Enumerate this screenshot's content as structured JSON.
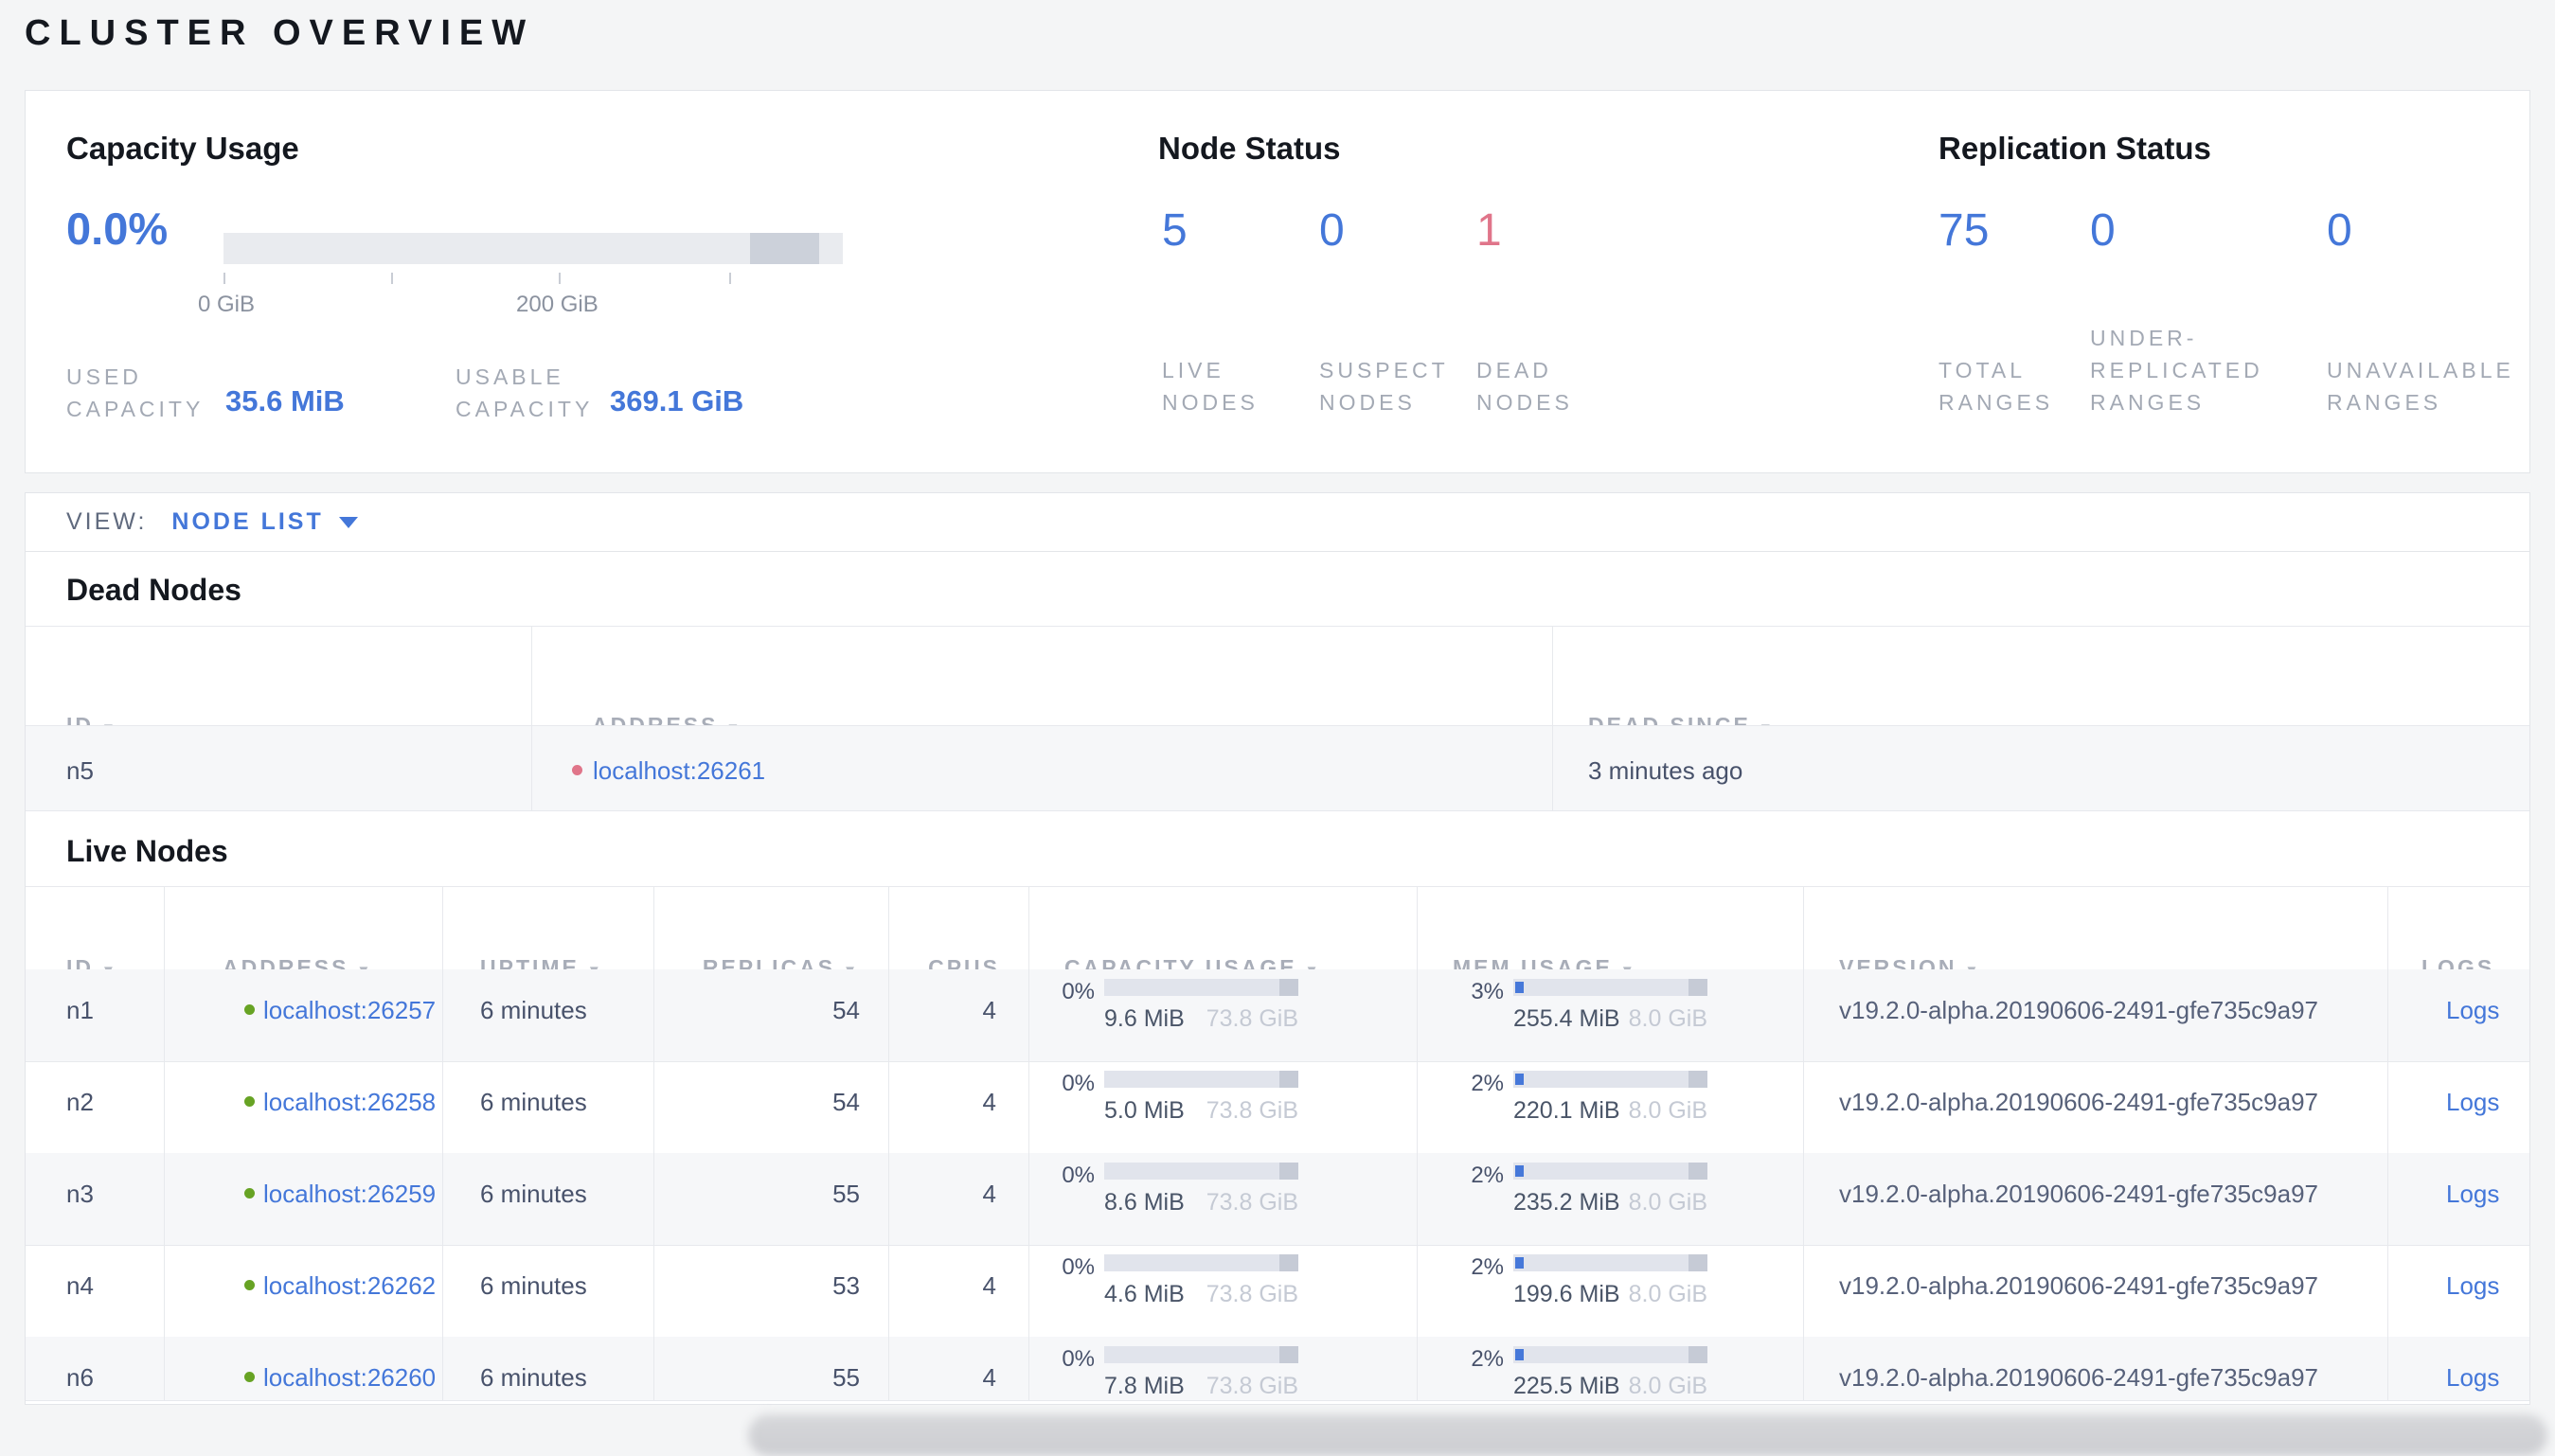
{
  "page": {
    "title": "CLUSTER OVERVIEW"
  },
  "colors": {
    "accent_blue": "#4477d9",
    "danger_red": "#e0758a",
    "live_green": "#67a324",
    "panel_border": "#e3e5e9",
    "muted_label": "#a3a9b4"
  },
  "summary": {
    "capacity": {
      "title": "Capacity Usage",
      "percent": "0.0%",
      "axis_tick_0": "0 GiB",
      "axis_tick_200": "200 GiB",
      "used_label": "USED CAPACITY",
      "used_value": "35.6 MiB",
      "usable_label": "USABLE CAPACITY",
      "usable_value": "369.1 GiB"
    },
    "node_status": {
      "title": "Node Status",
      "items": [
        {
          "value": "5",
          "label": "LIVE NODES"
        },
        {
          "value": "0",
          "label": "SUSPECT NODES"
        },
        {
          "value": "1",
          "label": "DEAD NODES"
        }
      ]
    },
    "replication": {
      "title": "Replication Status",
      "items": [
        {
          "value": "75",
          "label": "TOTAL RANGES"
        },
        {
          "value": "0",
          "label": "UNDER-REPLICATED RANGES"
        },
        {
          "value": "0",
          "label": "UNAVAILABLE RANGES"
        }
      ]
    }
  },
  "view_bar": {
    "label": "VIEW:",
    "selected": "NODE LIST"
  },
  "dead_nodes": {
    "title": "Dead Nodes",
    "columns": [
      {
        "label": "ID"
      },
      {
        "label": "ADDRESS"
      },
      {
        "label": "DEAD SINCE"
      }
    ],
    "rows": [
      {
        "id": "n5",
        "address": "localhost:26261",
        "dead_since": "3 minutes ago"
      }
    ]
  },
  "live_nodes": {
    "title": "Live Nodes",
    "columns": [
      {
        "label": "ID"
      },
      {
        "label": "ADDRESS"
      },
      {
        "label": "UPTIME"
      },
      {
        "label": "REPLICAS"
      },
      {
        "label": "CPUS"
      },
      {
        "label": "CAPACITY USAGE"
      },
      {
        "label": "MEM USAGE"
      },
      {
        "label": "VERSION"
      },
      {
        "label": "LOGS"
      }
    ],
    "rows": [
      {
        "id": "n1",
        "address": "localhost:26257",
        "uptime": "6 minutes",
        "replicas": "54",
        "cpus": "4",
        "capacity_pct": "0%",
        "capacity_used": "9.6 MiB",
        "capacity_total": "73.8 GiB",
        "mem_pct": "3%",
        "mem_used": "255.4 MiB",
        "mem_total": "8.0 GiB",
        "version": "v19.2.0-alpha.20190606-2491-gfe735c9a97",
        "logs": "Logs"
      },
      {
        "id": "n2",
        "address": "localhost:26258",
        "uptime": "6 minutes",
        "replicas": "54",
        "cpus": "4",
        "capacity_pct": "0%",
        "capacity_used": "5.0 MiB",
        "capacity_total": "73.8 GiB",
        "mem_pct": "2%",
        "mem_used": "220.1 MiB",
        "mem_total": "8.0 GiB",
        "version": "v19.2.0-alpha.20190606-2491-gfe735c9a97",
        "logs": "Logs"
      },
      {
        "id": "n3",
        "address": "localhost:26259",
        "uptime": "6 minutes",
        "replicas": "55",
        "cpus": "4",
        "capacity_pct": "0%",
        "capacity_used": "8.6 MiB",
        "capacity_total": "73.8 GiB",
        "mem_pct": "2%",
        "mem_used": "235.2 MiB",
        "mem_total": "8.0 GiB",
        "version": "v19.2.0-alpha.20190606-2491-gfe735c9a97",
        "logs": "Logs"
      },
      {
        "id": "n4",
        "address": "localhost:26262",
        "uptime": "6 minutes",
        "replicas": "53",
        "cpus": "4",
        "capacity_pct": "0%",
        "capacity_used": "4.6 MiB",
        "capacity_total": "73.8 GiB",
        "mem_pct": "2%",
        "mem_used": "199.6 MiB",
        "mem_total": "8.0 GiB",
        "version": "v19.2.0-alpha.20190606-2491-gfe735c9a97",
        "logs": "Logs"
      },
      {
        "id": "n6",
        "address": "localhost:26260",
        "uptime": "6 minutes",
        "replicas": "55",
        "cpus": "4",
        "capacity_pct": "0%",
        "capacity_used": "7.8 MiB",
        "capacity_total": "73.8 GiB",
        "mem_pct": "2%",
        "mem_used": "225.5 MiB",
        "mem_total": "8.0 GiB",
        "version": "v19.2.0-alpha.20190606-2491-gfe735c9a97",
        "logs": "Logs"
      }
    ]
  }
}
